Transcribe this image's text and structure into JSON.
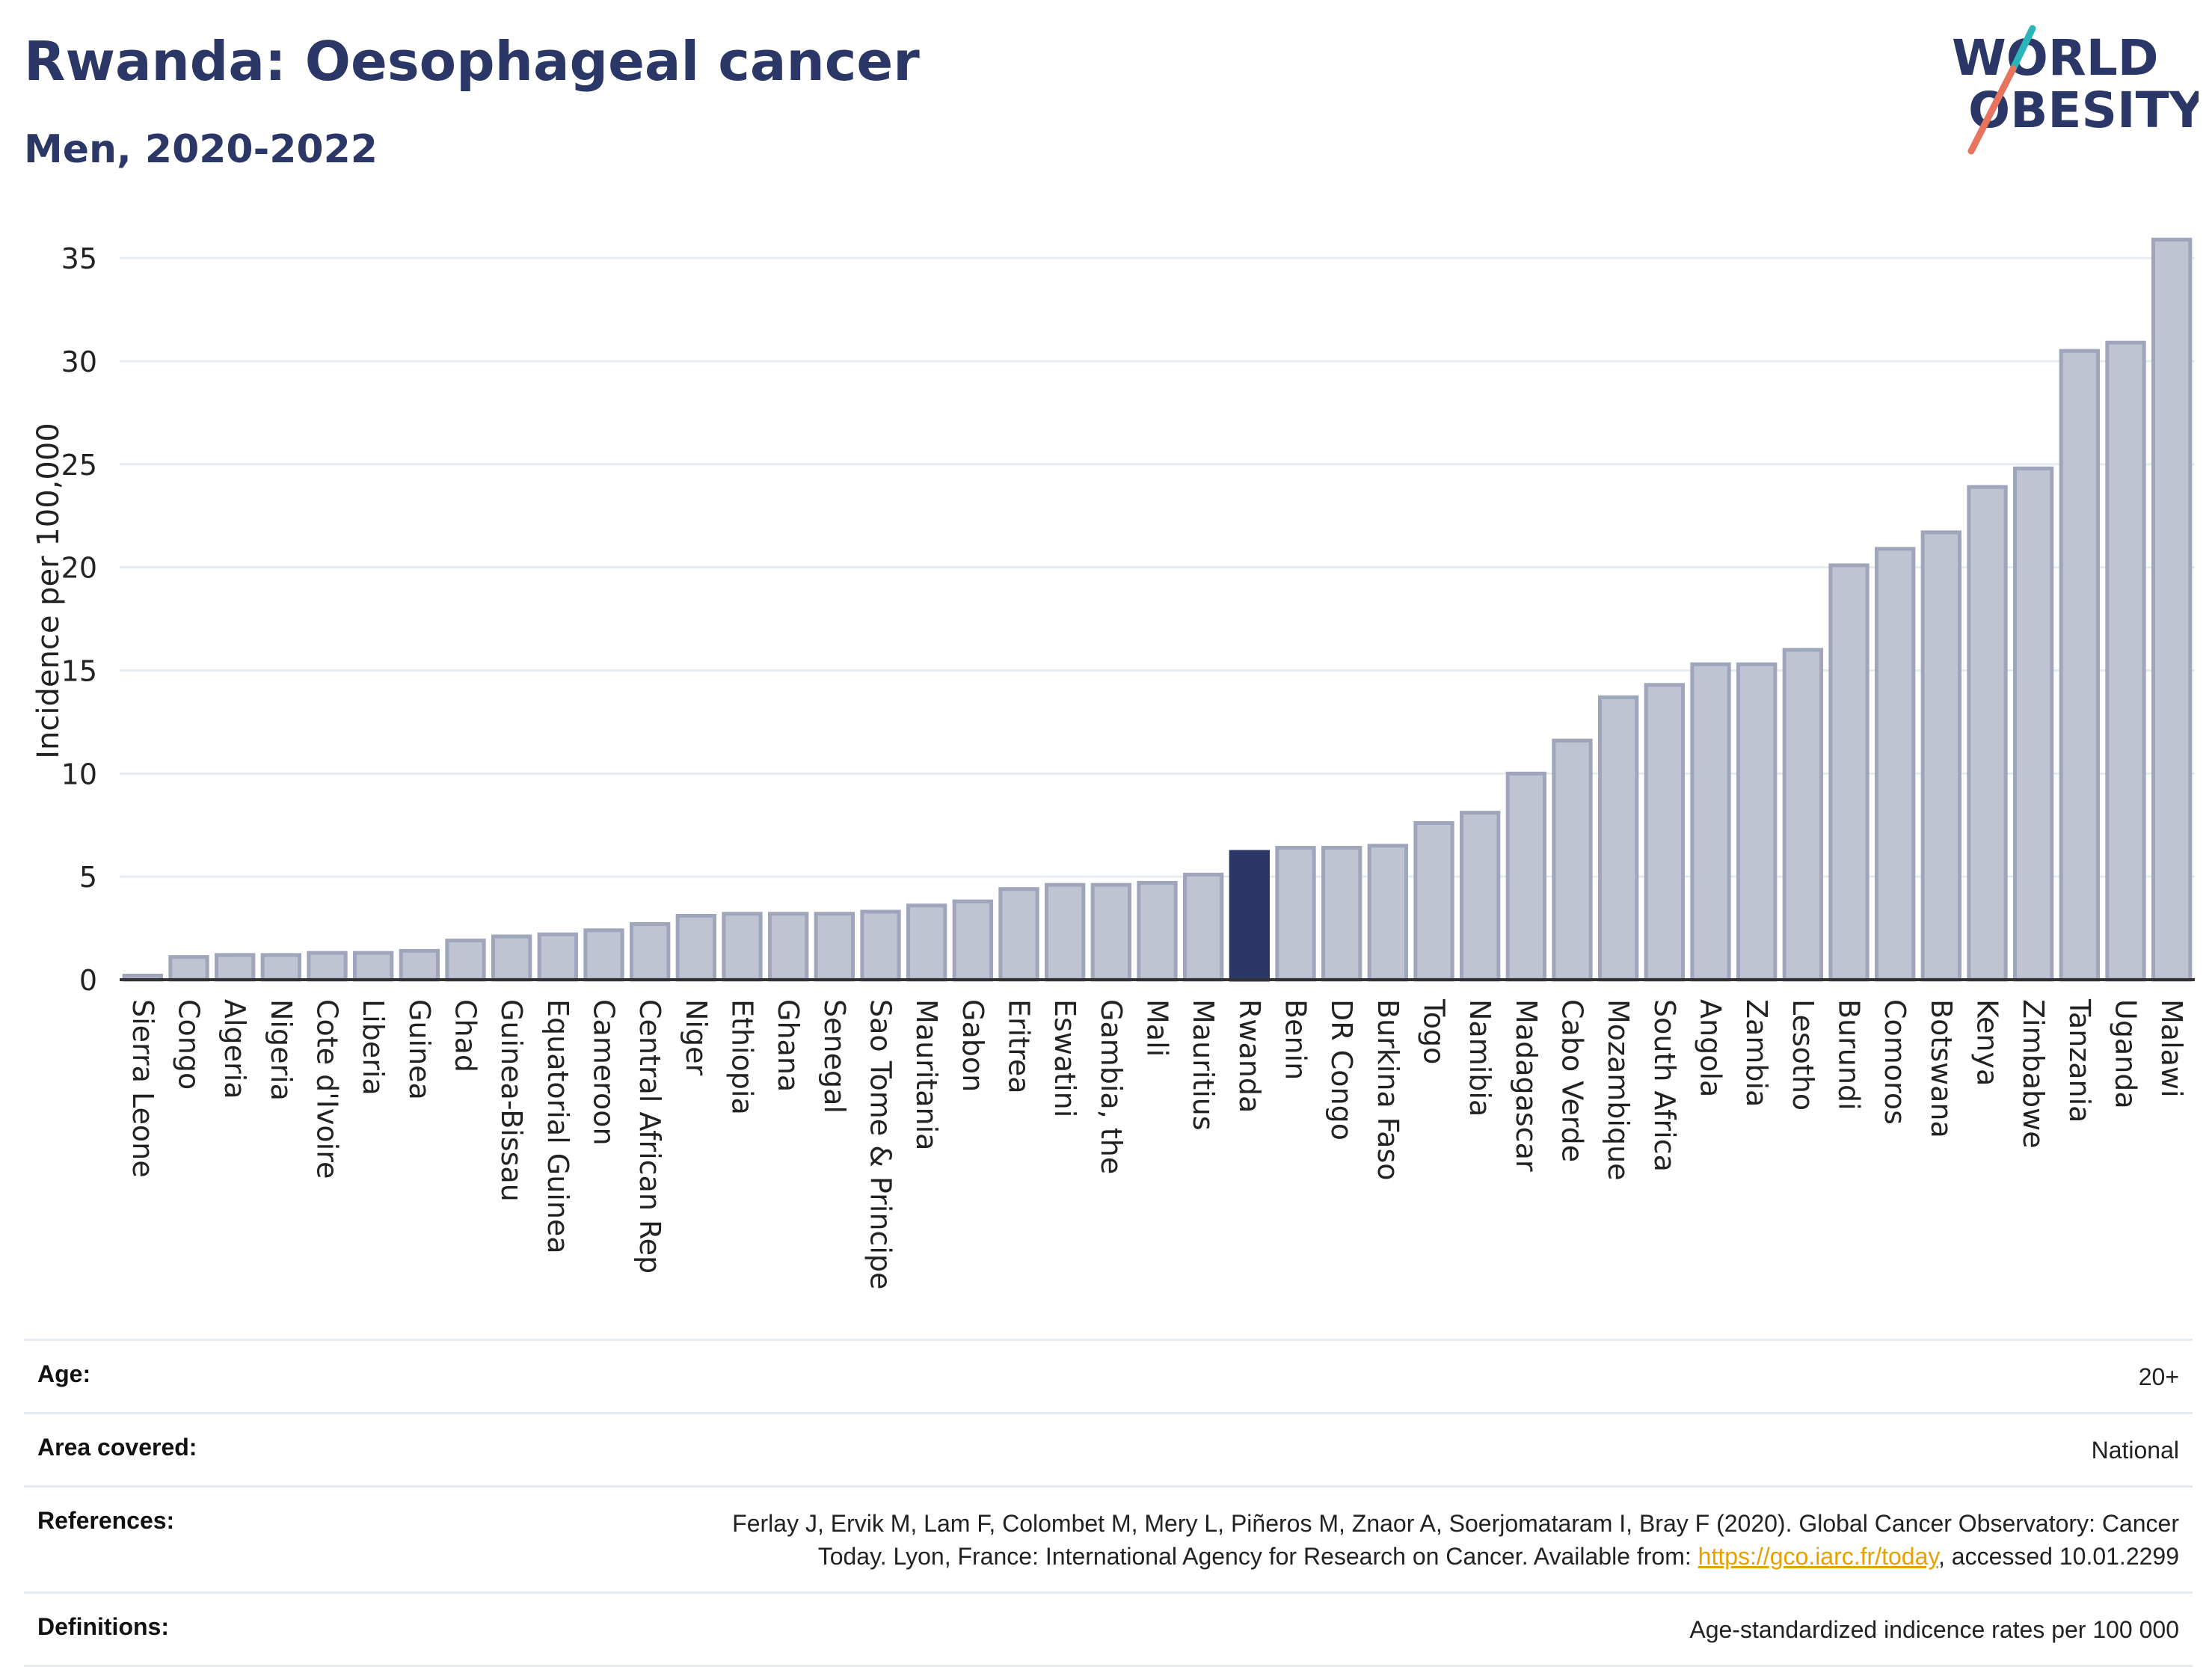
{
  "header": {
    "title": "Rwanda: Oesophageal cancer",
    "subtitle": "Men, 2020-2022"
  },
  "logo": {
    "text_top": "WORLD",
    "text_bottom": "OBESITY",
    "colors": {
      "text": "#2b3766",
      "slash_teal": "#2bb5b8",
      "slash_coral": "#e8735e"
    }
  },
  "colors": {
    "bar_default": "#bfc3d2",
    "bar_default_border": "#9fa5bb",
    "bar_highlight": "#2b3766",
    "axis": "#333333",
    "grid": "#e6ebef"
  },
  "chart_data": {
    "type": "bar",
    "title": "Rwanda: Oesophageal cancer",
    "subtitle": "Men, 2020-2022",
    "xlabel": "",
    "ylabel": "Incidence per 100,000",
    "ylim": [
      0,
      37
    ],
    "yticks": [
      0,
      5,
      10,
      15,
      20,
      25,
      30,
      35
    ],
    "grid": true,
    "highlight": "Rwanda",
    "categories": [
      "Sierra Leone",
      "Congo",
      "Algeria",
      "Nigeria",
      "Cote d'Ivoire",
      "Liberia",
      "Guinea",
      "Chad",
      "Guinea-Bissau",
      "Equatorial Guinea",
      "Cameroon",
      "Central African Rep",
      "Niger",
      "Ethiopia",
      "Ghana",
      "Senegal",
      "Sao Tome & Principe",
      "Mauritania",
      "Gabon",
      "Eritrea",
      "Eswatini",
      "Gambia, the",
      "Mali",
      "Mauritius",
      "Rwanda",
      "Benin",
      "DR Congo",
      "Burkina Faso",
      "Togo",
      "Namibia",
      "Madagascar",
      "Cabo Verde",
      "Mozambique",
      "South Africa",
      "Angola",
      "Zambia",
      "Lesotho",
      "Burundi",
      "Comoros",
      "Botswana",
      "Kenya",
      "Zimbabwe",
      "Tanzania",
      "Uganda",
      "Malawi"
    ],
    "values": [
      0.2,
      1.1,
      1.2,
      1.2,
      1.3,
      1.3,
      1.4,
      1.9,
      2.1,
      2.2,
      2.4,
      2.7,
      3.1,
      3.2,
      3.2,
      3.2,
      3.3,
      3.6,
      3.8,
      4.4,
      4.6,
      4.6,
      4.7,
      5.1,
      6.2,
      6.4,
      6.4,
      6.5,
      7.6,
      8.1,
      10.0,
      11.6,
      13.7,
      14.3,
      15.3,
      15.3,
      16.0,
      20.1,
      20.9,
      21.7,
      23.9,
      24.8,
      30.5,
      30.9,
      35.9
    ]
  },
  "info": {
    "age_label": "Age:",
    "age_value": "20+",
    "area_label": "Area covered:",
    "area_value": "National",
    "references_label": "References:",
    "references_line1": "Ferlay J, Ervik M, Lam F, Colombet M, Mery L, Piñeros M, Znaor A, Soerjomataram I, Bray F (2020). Global Cancer Observatory: Cancer",
    "references_line2_pre": "Today. Lyon, France: International Agency for Research on Cancer. Available from: ",
    "references_link": "https://gco.iarc.fr/today",
    "references_line2_post": ", accessed 10.01.2299",
    "definitions_label": "Definitions:",
    "definitions_value": "Age-standardized indicence rates per 100 000"
  }
}
